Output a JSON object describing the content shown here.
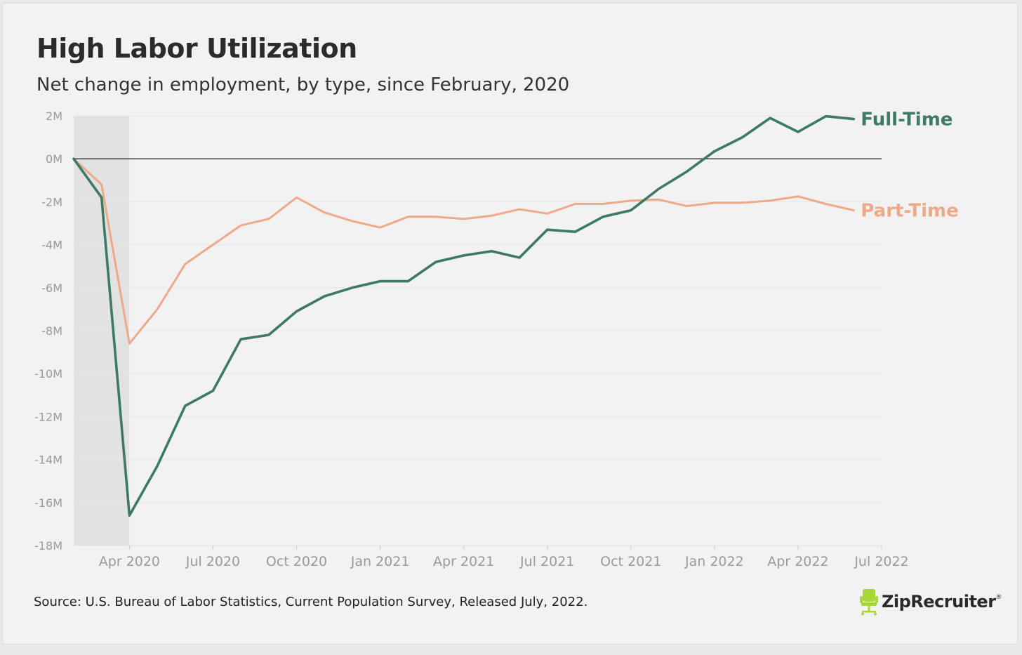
{
  "header": {
    "title": "High Labor Utilization",
    "subtitle": "Net change in employment, by type, since February, 2020"
  },
  "footer": {
    "source": "Source: U.S. Bureau of Labor Statistics, Current Population Survey, Released July, 2022.",
    "brand": "ZipRecruiter",
    "brand_mark": "®"
  },
  "colors": {
    "full_time": "#3d7a62",
    "part_time": "#eeaa88",
    "recession_shade": "#e2e2e2",
    "zero_line": "#333333",
    "grid": "#e6e6e6",
    "axis_text": "#9a9a9a",
    "logo_green": "#a6d63a"
  },
  "chart_data": {
    "type": "line",
    "title": "High Labor Utilization",
    "subtitle": "Net change in employment, by type, since February, 2020",
    "x": [
      "2020-02",
      "2020-03",
      "2020-04",
      "2020-05",
      "2020-06",
      "2020-07",
      "2020-08",
      "2020-09",
      "2020-10",
      "2020-11",
      "2020-12",
      "2021-01",
      "2021-02",
      "2021-03",
      "2021-04",
      "2021-05",
      "2021-06",
      "2021-07",
      "2021-08",
      "2021-09",
      "2021-10",
      "2021-11",
      "2021-12",
      "2022-01",
      "2022-02",
      "2022-03",
      "2022-04",
      "2022-05",
      "2022-06"
    ],
    "xlim": [
      "2020-02",
      "2022-07"
    ],
    "x_ticks": [
      "Apr 2020",
      "Jul 2020",
      "Oct 2020",
      "Jan 2021",
      "Apr 2021",
      "Jul 2021",
      "Oct 2021",
      "Jan 2022",
      "Apr 2022",
      "Jul 2022"
    ],
    "x_tick_dates": [
      "2020-04",
      "2020-07",
      "2020-10",
      "2021-01",
      "2021-04",
      "2021-07",
      "2021-10",
      "2022-01",
      "2022-04",
      "2022-07"
    ],
    "y_ticks": [
      "2M",
      "0M",
      "-2M",
      "-4M",
      "-6M",
      "-8M",
      "-10M",
      "-12M",
      "-14M",
      "-16M",
      "-18M"
    ],
    "y_tick_values": [
      2,
      0,
      -2,
      -4,
      -6,
      -8,
      -10,
      -12,
      -14,
      -16,
      -18
    ],
    "ylim": [
      -18,
      2
    ],
    "y_unit": "M",
    "grid": "horizontal",
    "zero_line": true,
    "shaded_region": [
      "2020-02",
      "2020-04"
    ],
    "legend": "inline labels at line ends (right)",
    "series": [
      {
        "name": "Full-Time",
        "values": [
          0,
          -1.8,
          -16.6,
          -14.3,
          -11.5,
          -10.8,
          -8.4,
          -8.2,
          -7.1,
          -6.4,
          -6.0,
          -5.7,
          -5.7,
          -4.8,
          -4.5,
          -4.3,
          -4.6,
          -3.3,
          -3.4,
          -2.7,
          -2.4,
          -1.4,
          -0.6,
          0.35,
          1.0,
          1.9,
          1.25,
          1.98,
          1.85
        ]
      },
      {
        "name": "Part-Time",
        "values": [
          0,
          -1.2,
          -8.6,
          -7.0,
          -4.9,
          -4.0,
          -3.1,
          -2.8,
          -1.8,
          -2.5,
          -2.9,
          -3.2,
          -2.7,
          -2.7,
          -2.8,
          -2.65,
          -2.35,
          -2.55,
          -2.1,
          -2.1,
          -1.95,
          -1.9,
          -2.2,
          -2.05,
          -2.05,
          -1.95,
          -1.75,
          -2.1,
          -2.4
        ]
      }
    ]
  }
}
